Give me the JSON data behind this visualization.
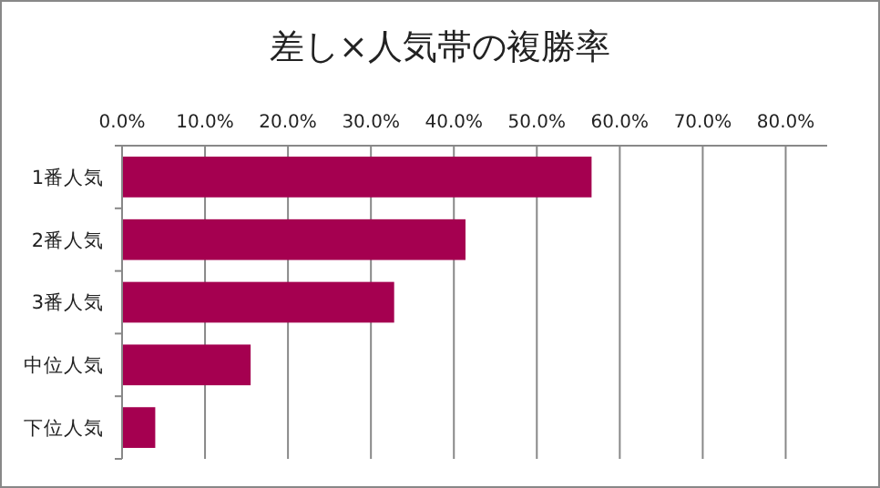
{
  "chart_data": {
    "type": "bar",
    "orientation": "horizontal",
    "title": "差し×人気帯の複勝率",
    "categories": [
      "1番人気",
      "2番人気",
      "3番人気",
      "中位人気",
      "下位人気"
    ],
    "values": [
      56.6,
      41.4,
      32.8,
      15.5,
      4.0
    ],
    "color": "#a50050",
    "xlim": [
      0,
      85
    ],
    "xticks": [
      {
        "value": 0,
        "label": "0.0%"
      },
      {
        "value": 10,
        "label": "10.0%"
      },
      {
        "value": 20,
        "label": "20.0%"
      },
      {
        "value": 30,
        "label": "30.0%"
      },
      {
        "value": 40,
        "label": "40.0%"
      },
      {
        "value": 50,
        "label": "50.0%"
      },
      {
        "value": 60,
        "label": "60.0%"
      },
      {
        "value": 70,
        "label": "70.0%"
      },
      {
        "value": 80,
        "label": "80.0%"
      }
    ],
    "grid": "x"
  }
}
